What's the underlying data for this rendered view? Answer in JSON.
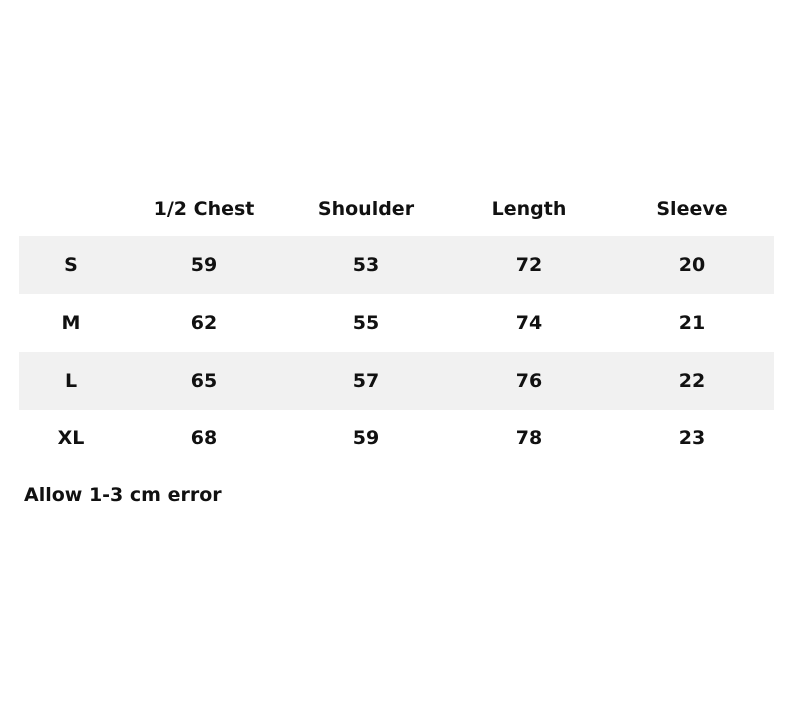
{
  "table": {
    "headers": [
      "",
      "1/2 Chest",
      "Shoulder",
      "Length",
      "Sleeve"
    ],
    "rows": [
      [
        "S",
        "59",
        "53",
        "72",
        "20"
      ],
      [
        "M",
        "62",
        "55",
        "74",
        "21"
      ],
      [
        "L",
        "65",
        "57",
        "76",
        "22"
      ],
      [
        "XL",
        "68",
        "59",
        "78",
        "23"
      ]
    ],
    "stripe_color": "#f1f1f1"
  },
  "note": "Allow 1-3 cm error"
}
